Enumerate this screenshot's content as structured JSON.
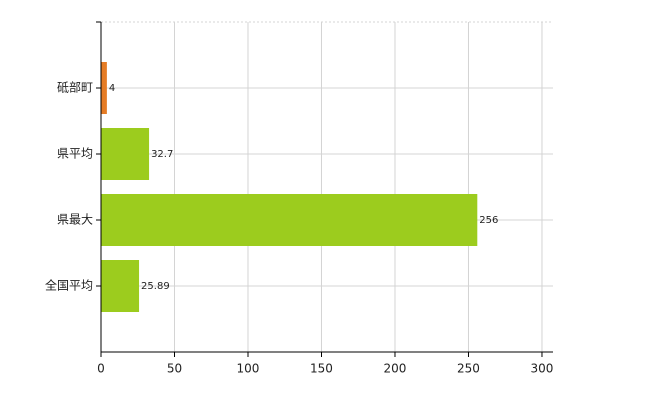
{
  "chart_data": {
    "type": "hbar",
    "categories": [
      "砥部町",
      "県平均",
      "県最大",
      "全国平均"
    ],
    "values": [
      4,
      32.7,
      256,
      25.89
    ],
    "colors": [
      "#e57c25",
      "#9ccc1e",
      "#9ccc1e",
      "#9ccc1e"
    ],
    "xlim": [
      0,
      307.5
    ],
    "xticks": [
      0,
      50,
      100,
      150,
      200,
      250,
      300
    ],
    "grid": true
  }
}
